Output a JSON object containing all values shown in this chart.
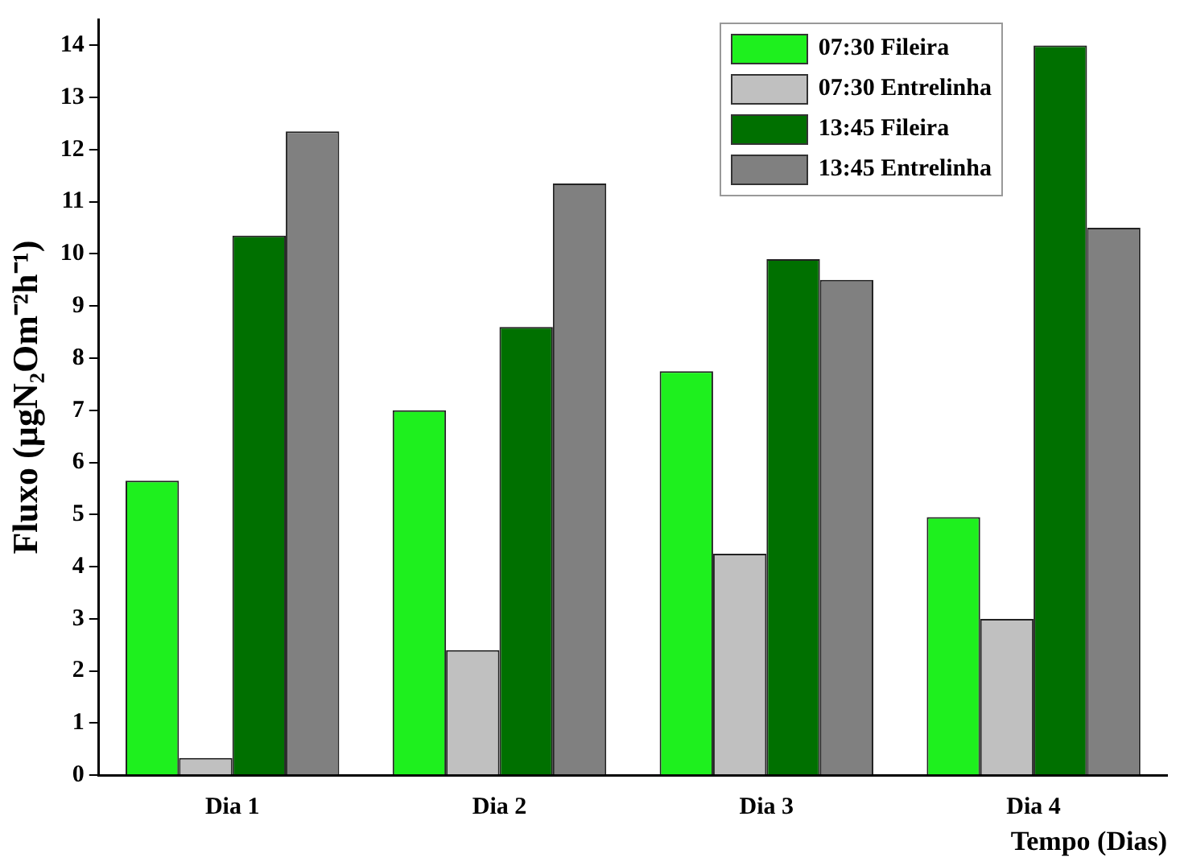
{
  "chart_data": {
    "type": "bar",
    "xlabel": "Tempo (Dias)",
    "ylabel": "Fluxo (µgN₂Om⁻²h⁻¹)",
    "categories": [
      "Dia 1",
      "Dia 2",
      "Dia 3",
      "Dia 4"
    ],
    "series": [
      {
        "name": "07:30 Fileira",
        "color": "#1ef01e",
        "values": [
          5.65,
          7.0,
          7.75,
          4.95
        ]
      },
      {
        "name": "07:30 Entrelinha",
        "color": "#c0c0c0",
        "values": [
          0.33,
          2.4,
          4.25,
          3.0
        ]
      },
      {
        "name": "13:45 Fileira",
        "color": "#007000",
        "values": [
          10.35,
          8.6,
          9.9,
          14.0
        ]
      },
      {
        "name": "13:45 Entrelinha",
        "color": "#808080",
        "values": [
          12.35,
          11.35,
          9.5,
          10.5
        ]
      }
    ],
    "ylim": [
      0,
      14.5
    ],
    "yticks": [
      0,
      1,
      2,
      3,
      4,
      5,
      6,
      7,
      8,
      9,
      10,
      11,
      12,
      13,
      14
    ],
    "grid": false,
    "legend": "top right"
  }
}
